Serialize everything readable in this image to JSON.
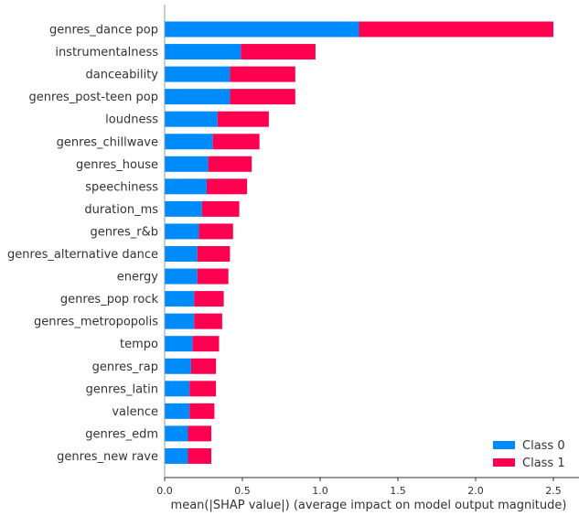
{
  "chart_data": {
    "type": "bar",
    "orientation": "horizontal",
    "stacked": true,
    "title": "",
    "xlabel": "mean(|SHAP value|) (average impact on model output magnitude)",
    "ylabel": "",
    "xlim": [
      0,
      2.6
    ],
    "xticks": [
      0.0,
      0.5,
      1.0,
      1.5,
      2.0,
      2.5
    ],
    "xtick_labels": [
      "0.0",
      "0.5",
      "1.0",
      "1.5",
      "2.0",
      "2.5"
    ],
    "grid": false,
    "legend_position": "bottom-right",
    "categories": [
      "genres_dance pop",
      "instrumentalness",
      "danceability",
      "genres_post-teen pop",
      "loudness",
      "genres_chillwave",
      "genres_house",
      "speechiness",
      "duration_ms",
      "genres_r&b",
      "genres_alternative dance",
      "energy",
      "genres_pop rock",
      "genres_metropopolis",
      "tempo",
      "genres_rap",
      "genres_latin",
      "valence",
      "genres_edm",
      "genres_new rave"
    ],
    "series": [
      {
        "name": "Class 0",
        "color": "#008bfb",
        "values": [
          1.25,
          0.49,
          0.42,
          0.42,
          0.34,
          0.31,
          0.28,
          0.27,
          0.24,
          0.22,
          0.21,
          0.21,
          0.19,
          0.19,
          0.18,
          0.17,
          0.16,
          0.16,
          0.15,
          0.15
        ]
      },
      {
        "name": "Class 1",
        "color": "#ff0051",
        "values": [
          1.25,
          0.48,
          0.42,
          0.42,
          0.33,
          0.3,
          0.28,
          0.26,
          0.24,
          0.22,
          0.21,
          0.2,
          0.19,
          0.18,
          0.17,
          0.16,
          0.17,
          0.16,
          0.15,
          0.15
        ]
      }
    ]
  }
}
